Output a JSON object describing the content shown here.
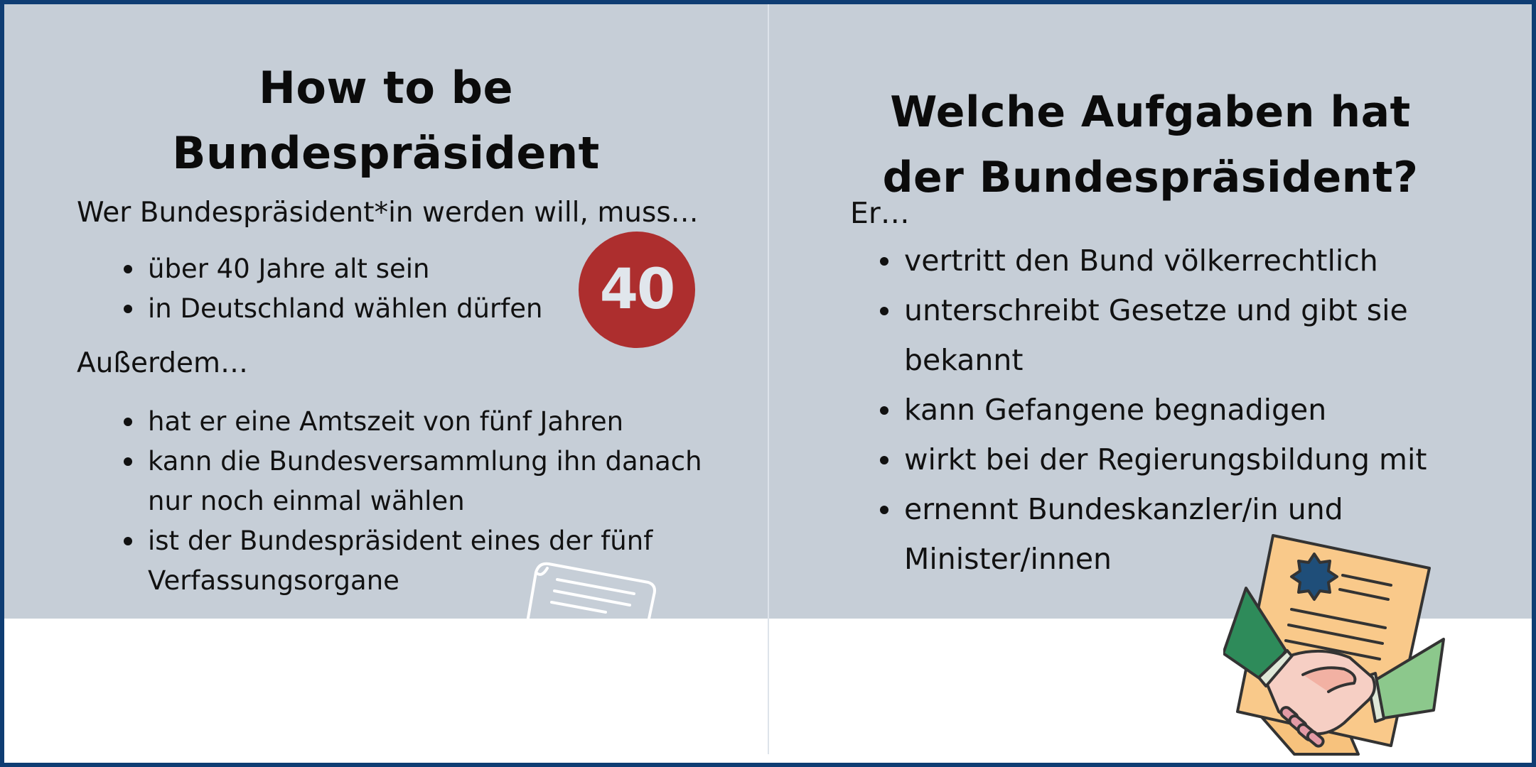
{
  "left": {
    "title_line1": "How to be",
    "title_line2": "Bundespräsident",
    "intro": "Wer Bundespräsident*in werden will, muss…",
    "requirements": [
      "über 40 Jahre alt sein",
      "in Deutschland wählen dürfen"
    ],
    "badge": "40",
    "more_intro": "Außerdem…",
    "facts": [
      "hat er eine Amtszeit von fünf Jahren",
      "kann die Bundesversammlung ihn danach nur noch einmal wählen",
      "ist der Bundespräsident eines der fünf Verfassungsorgane"
    ],
    "icon": "scroll-document-icon"
  },
  "right": {
    "title_line1": "Welche Aufgaben hat",
    "title_line2": "der Bundespräsident?",
    "intro": "Er…",
    "duties": [
      "vertritt den Bund völkerrechtlich",
      "unterschreibt Gesetze und gibt sie bekannt",
      "kann Gefangene begnadigen",
      "wirkt bei der Regierungsbildung mit",
      "ernennt Bundeskanzler/in und Minister/innen"
    ],
    "icon": "handshake-certificate-icon"
  },
  "colors": {
    "border": "#0f3d73",
    "band": "#c6ced7",
    "badge": "#ad2e2e",
    "certificate": "#f9c98a",
    "seal": "#1f4e79",
    "sleeve_dark": "#2e8b5a",
    "sleeve_light": "#8cc88c",
    "hand": "#f6cfc4"
  }
}
